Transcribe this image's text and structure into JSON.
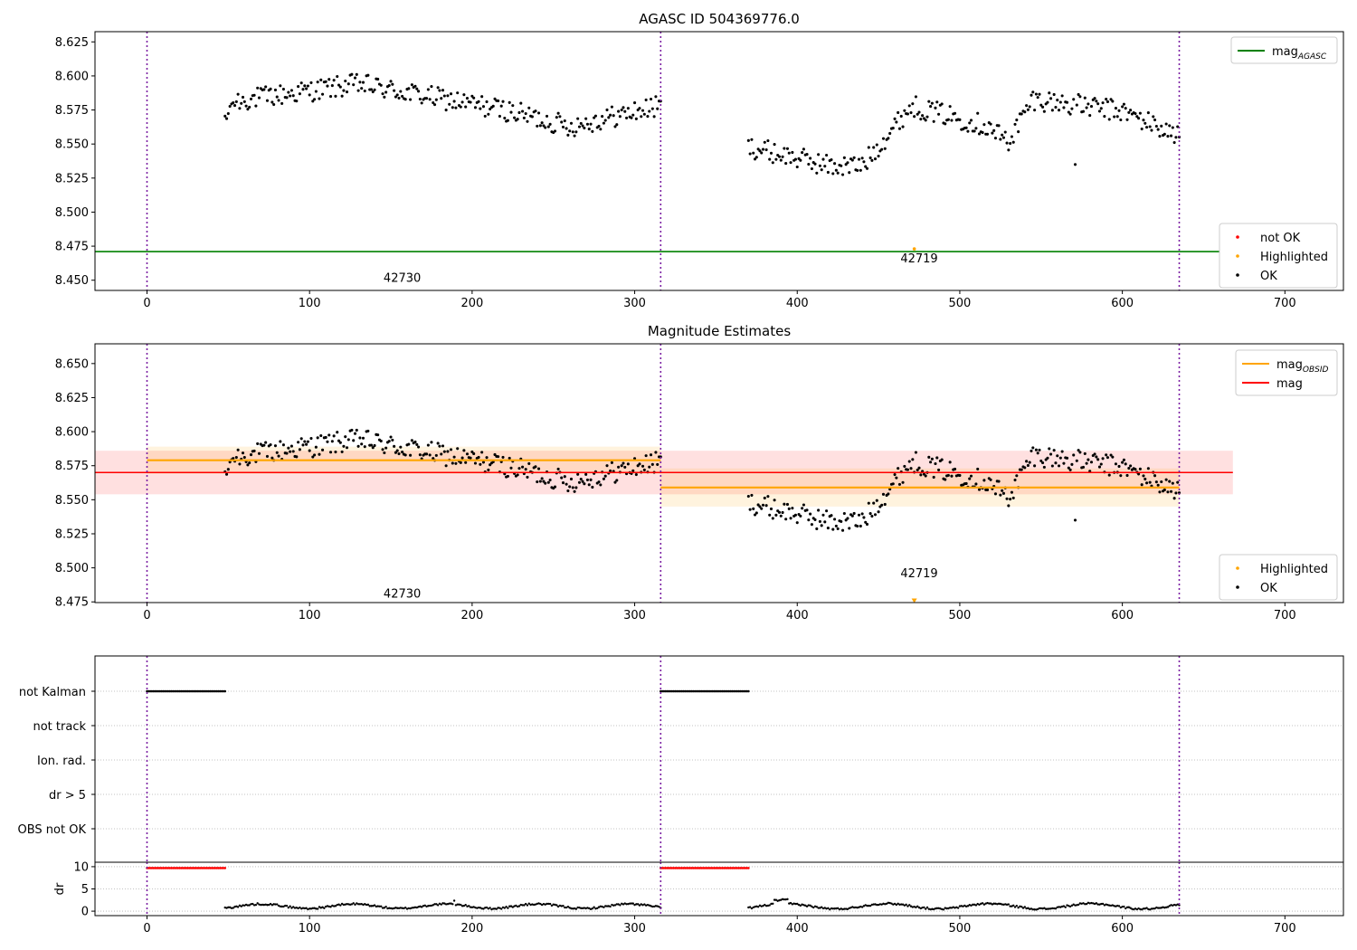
{
  "chart_data": [
    {
      "type": "scatter",
      "title": "AGASC ID 504369776.0",
      "xlim": [
        -32,
        736
      ],
      "ylim": [
        8.4425,
        8.6325
      ],
      "xticks": [
        0,
        100,
        200,
        300,
        400,
        500,
        600,
        700
      ],
      "yticks": [
        8.45,
        8.475,
        8.5,
        8.525,
        8.55,
        8.575,
        8.6,
        8.625
      ],
      "ytick_labels": [
        "8.450",
        "8.475",
        "8.500",
        "8.525",
        "8.550",
        "8.575",
        "8.600",
        "8.625"
      ],
      "obs_boundaries": [
        0,
        316,
        635
      ],
      "obs_labels": [
        {
          "text": "42730",
          "x": 157,
          "y": 8.452
        },
        {
          "text": "42719",
          "x": 475,
          "y": 8.4665
        }
      ],
      "hlines": [
        {
          "name": "mag_AGASC",
          "y": 8.471,
          "x": [
            -32,
            660
          ],
          "color": "#008000"
        }
      ],
      "highlighted_points": [
        {
          "x": 472,
          "y": 8.473
        }
      ],
      "legends": [
        {
          "position": "upper right",
          "entries": [
            {
              "label": "mag",
              "sub": "AGASC",
              "kind": "line",
              "color": "#008000"
            }
          ]
        },
        {
          "position": "lower right",
          "entries": [
            {
              "label": "not OK",
              "kind": "dot",
              "color": "#ff0000"
            },
            {
              "label": "Highlighted",
              "kind": "dot",
              "color": "#ffa500"
            },
            {
              "label": "OK",
              "kind": "dot",
              "color": "#000000"
            }
          ]
        }
      ],
      "grid": false
    },
    {
      "type": "scatter",
      "title": "Magnitude Estimates",
      "xlim": [
        -32,
        736
      ],
      "ylim": [
        8.4745,
        8.6645
      ],
      "xticks": [
        0,
        100,
        200,
        300,
        400,
        500,
        600,
        700
      ],
      "yticks": [
        8.475,
        8.5,
        8.525,
        8.55,
        8.575,
        8.6,
        8.625,
        8.65
      ],
      "ytick_labels": [
        "8.475",
        "8.500",
        "8.525",
        "8.550",
        "8.575",
        "8.600",
        "8.625",
        "8.650"
      ],
      "obs_boundaries": [
        0,
        316,
        635
      ],
      "obs_labels": [
        {
          "text": "42730",
          "x": 157,
          "y": 8.4815
        },
        {
          "text": "42719",
          "x": 475,
          "y": 8.4965
        }
      ],
      "mag": {
        "y": 8.57,
        "band": [
          8.554,
          8.586
        ],
        "x": [
          -32,
          668
        ],
        "color": "#ff0000"
      },
      "mag_obsid": [
        {
          "x": [
            0,
            316
          ],
          "y": 8.579,
          "band": [
            8.569,
            8.589
          ]
        },
        {
          "x": [
            316,
            635
          ],
          "y": 8.559,
          "band": [
            8.545,
            8.573
          ]
        }
      ],
      "highlighted_points": [
        {
          "x": 472,
          "y": 8.4755
        }
      ],
      "legends": [
        {
          "position": "upper right",
          "entries": [
            {
              "label": "mag",
              "sub": "OBSID",
              "kind": "line",
              "color": "#ffa500"
            },
            {
              "label": "mag",
              "kind": "line",
              "color": "#ff0000"
            }
          ]
        },
        {
          "position": "lower right",
          "entries": [
            {
              "label": "Highlighted",
              "kind": "dot",
              "color": "#ffa500"
            },
            {
              "label": "OK",
              "kind": "dot",
              "color": "#000000"
            }
          ]
        }
      ],
      "grid": false
    },
    {
      "type": "scatter",
      "title": "",
      "xlim": [
        -32,
        736
      ],
      "xticks": [
        0,
        100,
        200,
        300,
        400,
        500,
        600,
        700
      ],
      "flag_rows": [
        "not Kalman",
        "not track",
        "Ion. rad.",
        "dr > 5",
        "OBS not OK"
      ],
      "flags": [
        {
          "row": "not Kalman",
          "ranges": [
            [
              0,
              48
            ],
            [
              316,
              370
            ]
          ]
        }
      ],
      "dr_panel": {
        "ylabel": "dr",
        "yticks": [
          0,
          5,
          10
        ],
        "ytick_labels": [
          "0",
          "5",
          "10"
        ],
        "ylim": [
          -1,
          11
        ],
        "clipped_value": 9.7,
        "clipped_ranges": [
          [
            0,
            48
          ],
          [
            316,
            370
          ]
        ]
      },
      "obs_boundaries": [
        0,
        316,
        635
      ]
    }
  ]
}
